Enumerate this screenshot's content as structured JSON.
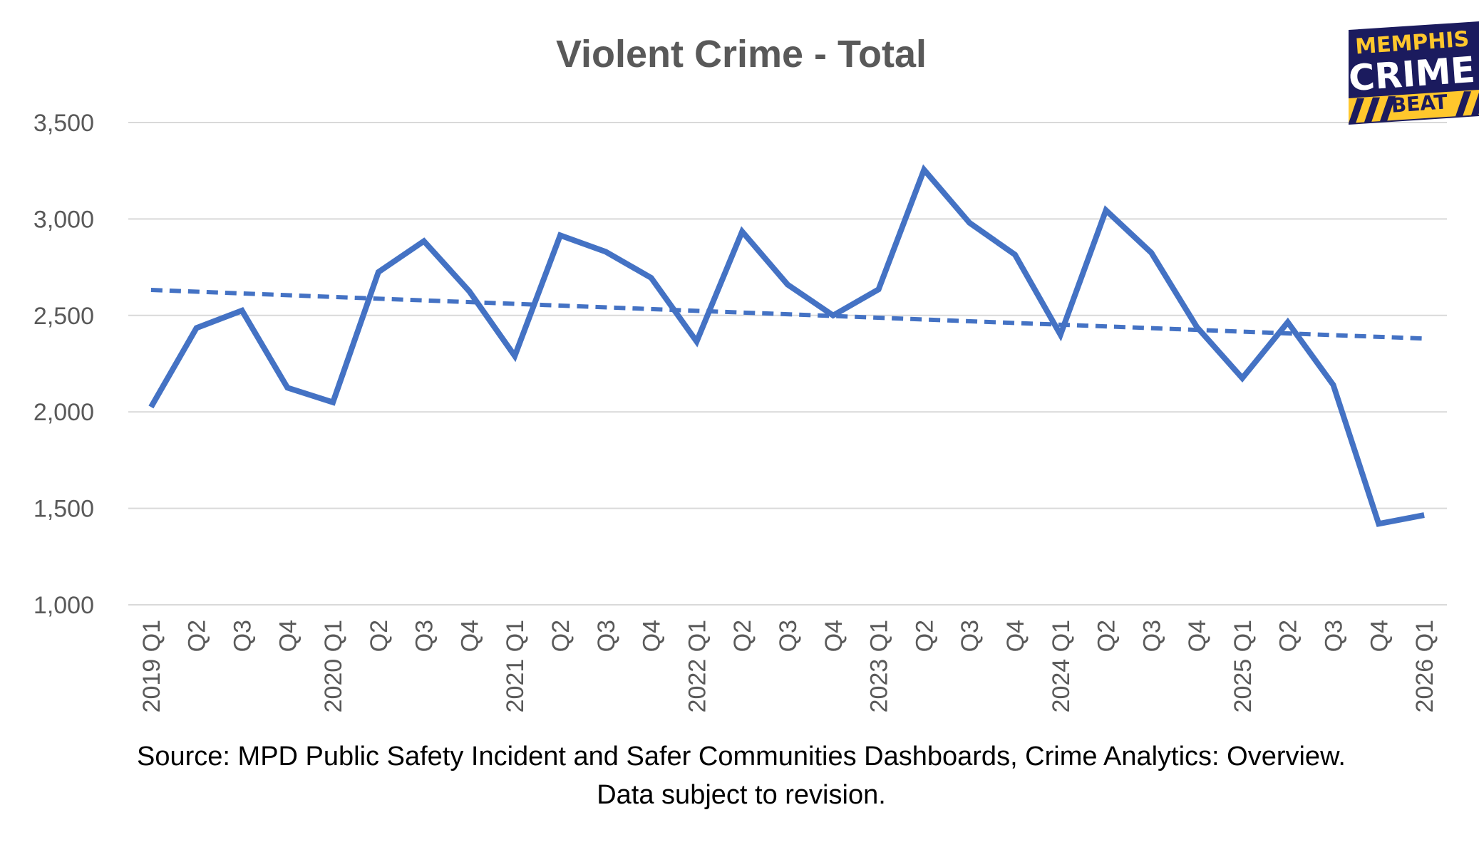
{
  "chart_data": {
    "type": "line",
    "title": "Violent Crime - Total",
    "xlabel": "",
    "ylabel": "",
    "categories": [
      "2019 Q1",
      "Q2",
      "Q3",
      "Q4",
      "2020 Q1",
      "Q2",
      "Q3",
      "Q4",
      "2021 Q1",
      "Q2",
      "Q3",
      "Q4",
      "2022 Q1",
      "Q2",
      "Q3",
      "Q4",
      "2023 Q1",
      "Q2",
      "Q3",
      "Q4",
      "2024 Q1",
      "Q2",
      "Q3",
      "Q4",
      "2025 Q1",
      "Q2",
      "Q3",
      "Q4",
      "2026 Q1"
    ],
    "series": [
      {
        "values": [
          2025,
          2435,
          2525,
          2125,
          2050,
          2725,
          2885,
          2625,
          2290,
          2915,
          2830,
          2695,
          2365,
          2935,
          2660,
          2500,
          2635,
          3255,
          2980,
          2815,
          2400,
          3045,
          2825,
          2440,
          2175,
          2465,
          2140,
          1420,
          1465
        ],
        "color": "#4472C4",
        "style": "solid"
      }
    ],
    "trendline": {
      "type": "linear",
      "start": 2632,
      "end": 2380,
      "color": "#4472C4",
      "style": "dashed"
    },
    "ylim": [
      1000,
      3500
    ],
    "yticks": [
      1000,
      1500,
      2000,
      2500,
      3000,
      3500
    ],
    "ytick_labels": [
      "1,000",
      "1,500",
      "2,000",
      "2,500",
      "3,000",
      "3,500"
    ],
    "grid": "horizontal",
    "gridline_color": "#D9D9D9",
    "legend": "none"
  },
  "source_note": {
    "line1": "Source: MPD Public Safety Incident and Safer Communities Dashboards, Crime Analytics: Overview.",
    "line2": "Data subject to revision."
  },
  "logo": {
    "line1": "MEMPHIS",
    "line2": "CRIME",
    "line3": "BEAT",
    "background_color": "#1B1B5E",
    "accent_color": "#FFC72C",
    "text_color": "#FFFFFF"
  }
}
